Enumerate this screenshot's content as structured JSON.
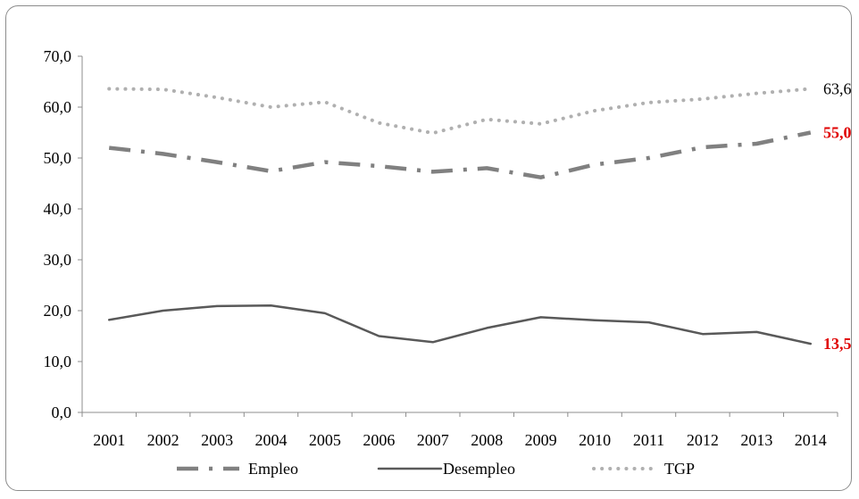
{
  "chart_data": {
    "type": "line",
    "title": "",
    "xlabel": "",
    "ylabel": "",
    "categories": [
      "2001",
      "2002",
      "2003",
      "2004",
      "2005",
      "2006",
      "2007",
      "2008",
      "2009",
      "2010",
      "2011",
      "2012",
      "2013",
      "2014"
    ],
    "ylim": [
      0,
      70
    ],
    "yticks": [
      "0,0",
      "10,0",
      "20,0",
      "30,0",
      "40,0",
      "50,0",
      "60,0",
      "70,0"
    ],
    "grid": false,
    "legend_position": "bottom",
    "series": [
      {
        "name": "Empleo",
        "style": "dash-dot",
        "color": "#808080",
        "values": [
          52.0,
          50.8,
          49.2,
          47.4,
          49.2,
          48.4,
          47.3,
          48.0,
          46.2,
          48.7,
          50.0,
          52.1,
          52.8,
          55.0
        ],
        "end_label": "55,0",
        "end_label_color": "#e00000"
      },
      {
        "name": "Desempleo",
        "style": "solid",
        "color": "#595959",
        "values": [
          18.2,
          20.0,
          20.9,
          21.0,
          19.5,
          15.0,
          13.8,
          16.6,
          18.7,
          18.1,
          17.7,
          15.4,
          15.8,
          13.5
        ],
        "end_label": "13,5",
        "end_label_color": "#e00000"
      },
      {
        "name": "TGP",
        "style": "dotted",
        "color": "#b0b0b0",
        "values": [
          63.6,
          63.5,
          61.9,
          60.0,
          61.0,
          56.9,
          54.9,
          57.6,
          56.7,
          59.3,
          60.9,
          61.6,
          62.7,
          63.6
        ],
        "end_label": "63,6",
        "end_label_color": "#000000"
      }
    ]
  }
}
